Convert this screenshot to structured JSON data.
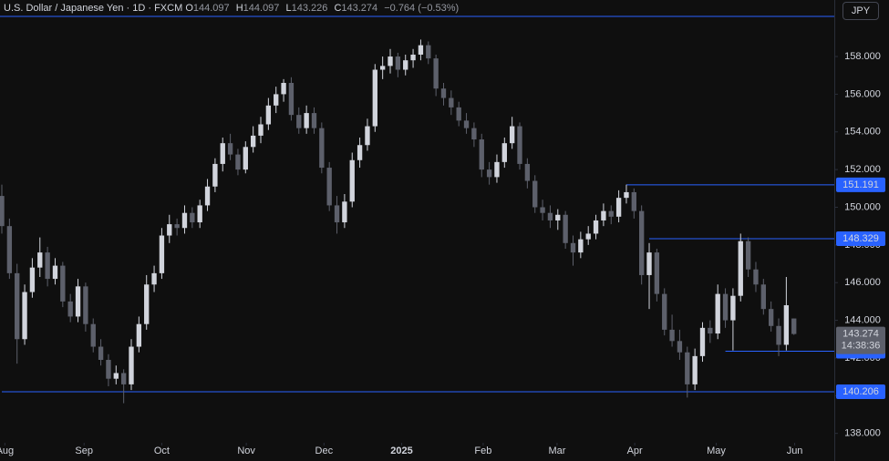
{
  "chart_data": {
    "type": "candlestick",
    "symbol": "U.S. Dollar / Japanese Yen · 1D · FXCM",
    "ohlc_labels": [
      "O",
      "H",
      "L",
      "C"
    ],
    "change": "−0.764 (−0.53%)",
    "currency": "JPY",
    "countdown": "14:38:36",
    "up_color": "#d1d4dc",
    "down_color": "#5d606b",
    "level_color": "#2962ff",
    "last_color": "#5d606b",
    "ylim": [
      137.5,
      161
    ],
    "yticks": [
      {
        "value": 138,
        "label": "138.000"
      },
      {
        "value": 140,
        "label": "140.000"
      },
      {
        "value": 142,
        "label": "142.000"
      },
      {
        "value": 144,
        "label": "144.000"
      },
      {
        "value": 146,
        "label": "146.000"
      },
      {
        "value": 148,
        "label": "148.000"
      },
      {
        "value": 150,
        "label": "150.000"
      },
      {
        "value": 152,
        "label": "152.000"
      },
      {
        "value": 154,
        "label": "154.000"
      },
      {
        "value": 156,
        "label": "156.000"
      },
      {
        "value": 158,
        "label": "158.000"
      }
    ],
    "xlim": [
      -0.24,
      109.3
    ],
    "xticks": [
      {
        "value": 0.4,
        "label": "Aug"
      },
      {
        "value": 10.8,
        "label": "Sep"
      },
      {
        "value": 21,
        "label": "Oct"
      },
      {
        "value": 32.1,
        "label": "Nov"
      },
      {
        "value": 42.3,
        "label": "Dec"
      },
      {
        "value": 52.5,
        "label": "2025"
      },
      {
        "value": 63.2,
        "label": "Feb"
      },
      {
        "value": 72.9,
        "label": "Mar"
      },
      {
        "value": 83.1,
        "label": "Apr"
      },
      {
        "value": 93.8,
        "label": "May"
      },
      {
        "value": 104.1,
        "label": "Jun"
      }
    ],
    "levels": [
      {
        "value": 151.191,
        "from": 82
      },
      {
        "value": 148.329,
        "from": 85
      },
      {
        "value": 142.358,
        "from": 95
      },
      {
        "value": 140.206,
        "from": 0
      }
    ],
    "ohlc": [
      [
        150.6,
        151.2,
        148.6,
        149.0
      ],
      [
        149.0,
        149.4,
        146.2,
        146.5
      ],
      [
        146.5,
        147.0,
        141.7,
        143.0
      ],
      [
        143.0,
        145.9,
        142.7,
        145.5
      ],
      [
        145.5,
        147.3,
        145.2,
        146.8
      ],
      [
        146.8,
        148.4,
        146.3,
        147.6
      ],
      [
        147.6,
        147.9,
        145.8,
        146.2
      ],
      [
        146.2,
        147.3,
        145.9,
        146.9
      ],
      [
        146.9,
        147.1,
        144.7,
        145.0
      ],
      [
        145.0,
        145.4,
        143.9,
        144.2
      ],
      [
        144.2,
        146.2,
        143.9,
        145.8
      ],
      [
        145.8,
        146.0,
        143.4,
        143.8
      ],
      [
        143.8,
        144.1,
        142.3,
        142.6
      ],
      [
        142.6,
        143.0,
        141.6,
        141.9
      ],
      [
        141.9,
        142.2,
        140.5,
        140.9
      ],
      [
        140.9,
        141.6,
        140.6,
        141.2
      ],
      [
        141.2,
        141.4,
        139.6,
        140.6
      ],
      [
        140.6,
        143.0,
        140.3,
        142.6
      ],
      [
        142.6,
        144.2,
        142.3,
        143.8
      ],
      [
        143.8,
        146.4,
        143.5,
        145.9
      ],
      [
        145.9,
        146.9,
        145.5,
        146.5
      ],
      [
        146.5,
        148.9,
        146.2,
        148.5
      ],
      [
        148.5,
        149.6,
        148.1,
        149.1
      ],
      [
        149.1,
        149.4,
        148.5,
        148.9
      ],
      [
        148.9,
        150.1,
        148.6,
        149.7
      ],
      [
        149.7,
        150.0,
        148.9,
        149.2
      ],
      [
        149.2,
        150.4,
        148.9,
        150.1
      ],
      [
        150.1,
        151.5,
        149.8,
        151.1
      ],
      [
        151.1,
        152.6,
        150.8,
        152.3
      ],
      [
        152.3,
        153.7,
        151.9,
        153.4
      ],
      [
        153.4,
        153.9,
        152.5,
        152.8
      ],
      [
        152.8,
        153.1,
        151.7,
        152.0
      ],
      [
        152.0,
        153.5,
        151.8,
        153.2
      ],
      [
        153.2,
        154.3,
        152.9,
        153.8
      ],
      [
        153.8,
        154.8,
        153.4,
        154.4
      ],
      [
        154.4,
        155.8,
        154.1,
        155.4
      ],
      [
        155.4,
        156.4,
        155.0,
        156.0
      ],
      [
        156.0,
        156.8,
        155.6,
        156.6
      ],
      [
        156.6,
        156.9,
        154.6,
        154.9
      ],
      [
        154.9,
        155.3,
        153.9,
        154.2
      ],
      [
        154.2,
        155.4,
        153.9,
        155.0
      ],
      [
        155.0,
        155.3,
        153.9,
        154.2
      ],
      [
        154.2,
        154.5,
        151.8,
        152.1
      ],
      [
        152.1,
        152.4,
        149.8,
        150.1
      ],
      [
        150.1,
        150.6,
        148.6,
        149.2
      ],
      [
        149.2,
        150.7,
        148.9,
        150.3
      ],
      [
        150.3,
        152.9,
        150.0,
        152.5
      ],
      [
        152.5,
        153.7,
        152.1,
        153.3
      ],
      [
        153.3,
        154.7,
        153.0,
        154.3
      ],
      [
        154.3,
        157.6,
        154.0,
        157.3
      ],
      [
        157.3,
        158.0,
        156.8,
        157.5
      ],
      [
        157.5,
        158.4,
        157.1,
        158.0
      ],
      [
        158.0,
        158.2,
        156.9,
        157.3
      ],
      [
        157.3,
        158.1,
        157.0,
        157.8
      ],
      [
        157.8,
        158.4,
        157.4,
        158.1
      ],
      [
        158.1,
        158.9,
        157.8,
        158.6
      ],
      [
        158.6,
        158.8,
        157.6,
        157.9
      ],
      [
        157.9,
        158.1,
        155.9,
        156.3
      ],
      [
        156.3,
        156.6,
        155.4,
        155.8
      ],
      [
        155.8,
        156.2,
        154.9,
        155.3
      ],
      [
        155.3,
        155.6,
        154.3,
        154.6
      ],
      [
        154.6,
        155.0,
        153.9,
        154.2
      ],
      [
        154.2,
        154.5,
        153.2,
        153.6
      ],
      [
        153.6,
        153.9,
        151.6,
        152.0
      ],
      [
        152.0,
        152.4,
        151.2,
        151.6
      ],
      [
        151.6,
        152.8,
        151.3,
        152.4
      ],
      [
        152.4,
        153.7,
        152.1,
        153.4
      ],
      [
        153.4,
        154.8,
        153.1,
        154.3
      ],
      [
        154.3,
        154.5,
        152.0,
        152.3
      ],
      [
        152.3,
        152.6,
        151.0,
        151.4
      ],
      [
        151.4,
        151.7,
        149.7,
        150.0
      ],
      [
        150.0,
        150.4,
        149.3,
        149.7
      ],
      [
        149.7,
        150.1,
        148.9,
        149.3
      ],
      [
        149.3,
        149.9,
        148.8,
        149.6
      ],
      [
        149.6,
        149.8,
        147.8,
        148.1
      ],
      [
        148.1,
        148.5,
        146.9,
        147.6
      ],
      [
        147.6,
        148.7,
        147.3,
        148.3
      ],
      [
        148.3,
        149.0,
        148.0,
        148.6
      ],
      [
        148.6,
        149.6,
        148.3,
        149.3
      ],
      [
        149.3,
        150.2,
        149.0,
        149.8
      ],
      [
        149.8,
        150.1,
        149.1,
        149.5
      ],
      [
        149.5,
        150.9,
        149.2,
        150.5
      ],
      [
        150.5,
        151.2,
        150.2,
        150.8
      ],
      [
        150.8,
        151.0,
        149.4,
        149.8
      ],
      [
        149.8,
        150.1,
        145.9,
        146.4
      ],
      [
        146.4,
        148.1,
        144.6,
        147.6
      ],
      [
        147.6,
        147.8,
        145.0,
        145.4
      ],
      [
        145.4,
        145.7,
        143.2,
        143.5
      ],
      [
        143.5,
        144.3,
        142.6,
        142.9
      ],
      [
        142.9,
        143.5,
        141.9,
        142.3
      ],
      [
        142.3,
        142.6,
        139.9,
        140.6
      ],
      [
        140.6,
        142.5,
        140.3,
        142.1
      ],
      [
        142.1,
        143.9,
        141.8,
        143.6
      ],
      [
        143.6,
        144.0,
        142.8,
        143.3
      ],
      [
        143.3,
        145.9,
        143.0,
        145.4
      ],
      [
        145.4,
        145.7,
        143.6,
        144.0
      ],
      [
        144.0,
        145.7,
        142.4,
        145.3
      ],
      [
        145.3,
        148.6,
        145.0,
        148.2
      ],
      [
        148.2,
        148.4,
        146.3,
        146.7
      ],
      [
        146.7,
        147.1,
        145.5,
        145.9
      ],
      [
        145.9,
        146.2,
        144.3,
        144.6
      ],
      [
        144.6,
        145.0,
        143.4,
        143.7
      ],
      [
        143.7,
        144.1,
        142.1,
        142.7
      ],
      [
        142.7,
        146.3,
        142.4,
        144.8
      ],
      [
        144.097,
        144.097,
        143.226,
        143.274
      ]
    ]
  }
}
